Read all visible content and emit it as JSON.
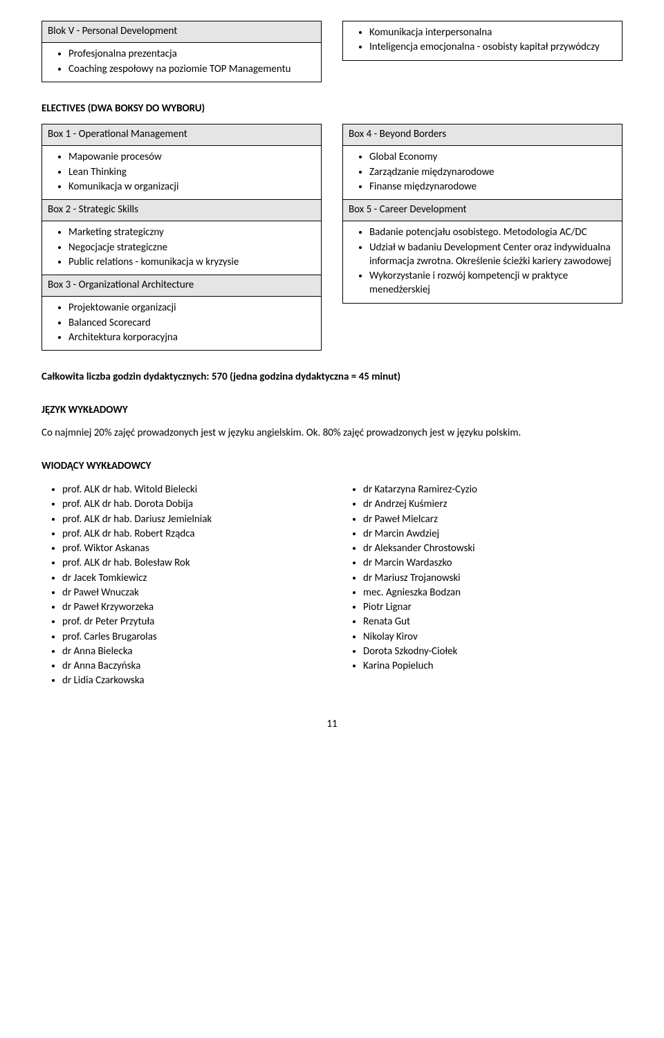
{
  "blok5": {
    "header": "Blok V - Personal Development",
    "left_items": [
      "Profesjonalna prezentacja",
      "Coaching zespołowy na poziomie TOP Managementu"
    ],
    "right_items": [
      "Komunikacja interpersonalna",
      "Inteligencja emocjonalna - osobisty kapitał przywódczy"
    ]
  },
  "electives_heading": "ELECTIVES (DWA BOKSY DO WYBORU)",
  "electives_left": {
    "box1_header": "Box 1 - Operational Management",
    "box1_items": [
      "Mapowanie procesów",
      "Lean Thinking",
      "Komunikacja w organizacji"
    ],
    "box2_header": "Box 2 - Strategic Skills",
    "box2_items": [
      "Marketing strategiczny",
      "Negocjacje strategiczne",
      "Public relations - komunikacja w kryzysie"
    ],
    "box3_header": "Box 3 - Organizational Architecture",
    "box3_items": [
      "Projektowanie organizacji",
      "Balanced Scorecard",
      "Architektura korporacyjna"
    ]
  },
  "electives_right": {
    "box4_header": "Box 4 - Beyond Borders",
    "box4_items": [
      "Global Economy",
      "Zarządzanie międzynarodowe",
      "Finanse międzynarodowe"
    ],
    "box5_header": "Box 5 - Career Development",
    "box5_items": [
      "Badanie potencjału osobistego. Metodologia AC/DC",
      "Udział w badaniu Development Center oraz indywidualna informacja zwrotna. Określenie ścieżki kariery zawodowej",
      "Wykorzystanie i rozwój kompetencji w praktyce menedżerskiej"
    ]
  },
  "total_hours": "Całkowita liczba godzin dydaktycznych: 570 (jedna godzina dydaktyczna = 45 minut)",
  "language_heading": "JĘZYK WYKŁADOWY",
  "language_text": "Co najmniej 20% zajęć prowadzonych jest w języku angielskim. Ok. 80% zajęć prowadzonych jest w języku polskim.",
  "lecturers_heading": "WIODĄCY WYKŁADOWCY",
  "lecturers_left": [
    "prof. ALK dr hab. Witold Bielecki",
    "prof. ALK dr hab. Dorota Dobija",
    "prof. ALK dr hab. Dariusz Jemielniak",
    "prof. ALK dr hab. Robert Rządca",
    "prof. Wiktor Askanas",
    "prof. ALK dr hab. Bolesław Rok",
    "dr Jacek Tomkiewicz",
    "dr Paweł Wnuczak",
    "dr Paweł Krzyworzeka",
    "prof. dr Peter Przytuła",
    "prof. Carles Brugarolas",
    "dr Anna Bielecka",
    "dr Anna Baczyńska",
    "dr Lidia Czarkowska"
  ],
  "lecturers_right": [
    "dr Katarzyna Ramirez-Cyzio",
    "dr Andrzej Kuśmierz",
    "dr Paweł Mielcarz",
    "dr Marcin Awdziej",
    "dr Aleksander Chrostowski",
    "dr Marcin Wardaszko",
    "dr Mariusz Trojanowski",
    "mec. Agnieszka Bodzan",
    "Piotr Lignar",
    "Renata Gut",
    "Nikolay Kirov",
    "Dorota Szkodny-Ciołek",
    "Karina Popieluch"
  ],
  "page_number": "11"
}
